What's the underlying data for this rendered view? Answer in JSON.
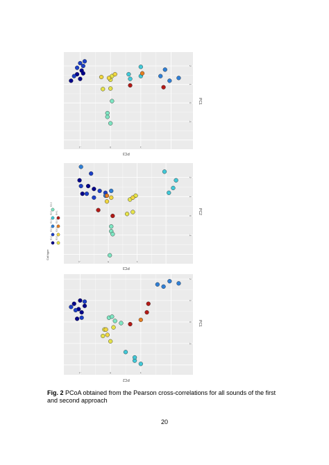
{
  "colors": {
    "panel_bg": "#ebebeb",
    "grid": "#ffffff",
    "call_types": [
      "#00008b",
      "#1c3fc7",
      "#2f7fd6",
      "#42c9d8",
      "#7ee5c2",
      "#e6e34a",
      "#f0d640",
      "#e67e22",
      "#b31a17"
    ]
  },
  "caption": {
    "label": "Fig. 2",
    "text": " PCoA obtained from the Pearson cross-correlations for all sounds of the first and second approach"
  },
  "page_number": "20",
  "legend": {
    "title": "Call type",
    "entries": [
      "G1.1",
      "G1.2",
      "G1.3",
      "G2.1",
      "G2.2",
      "G3.1",
      "G3.2",
      "G3.3",
      "G4.1"
    ]
  },
  "chart_data": [
    {
      "type": "scatter",
      "panel": "top",
      "xlabel": "PC3",
      "ylabel": "PC1",
      "x_ticks": [
        "-2",
        "-1",
        "0",
        "1"
      ],
      "y_ticks": [
        "2",
        "1",
        "0",
        "-1"
      ],
      "points": [
        {
          "pc1": -1.3,
          "pc3": 1.2,
          "c": 0
        },
        {
          "pc1": -1.0,
          "pc3": 1.3,
          "c": 0
        },
        {
          "pc1": -1.1,
          "pc3": 1.55,
          "c": 0
        },
        {
          "pc1": -0.95,
          "pc3": 1.75,
          "c": 0
        },
        {
          "pc1": -1.1,
          "pc3": 1.9,
          "c": 1
        },
        {
          "pc1": -0.9,
          "pc3": 2.0,
          "c": 1
        },
        {
          "pc1": -1.0,
          "pc3": 2.15,
          "c": 1
        },
        {
          "pc1": -0.85,
          "pc3": 2.25,
          "c": 1
        },
        {
          "pc1": -1.2,
          "pc3": 1.45,
          "c": 1
        },
        {
          "pc1": -0.9,
          "pc3": 1.6,
          "c": 0
        },
        {
          "pc1": 2.25,
          "pc3": 1.35,
          "c": 2
        },
        {
          "pc1": 1.95,
          "pc3": 1.2,
          "c": 2
        },
        {
          "pc1": 1.65,
          "pc3": 1.45,
          "c": 2
        },
        {
          "pc1": 1.8,
          "pc3": 1.8,
          "c": 2
        },
        {
          "pc1": 1.0,
          "pc3": 1.45,
          "c": 3
        },
        {
          "pc1": 0.65,
          "pc3": 1.3,
          "c": 3
        },
        {
          "pc1": 0.6,
          "pc3": 1.55,
          "c": 3
        },
        {
          "pc1": 1.0,
          "pc3": 1.95,
          "c": 3
        },
        {
          "pc1": 0.0,
          "pc3": -1.1,
          "c": 4
        },
        {
          "pc1": -0.1,
          "pc3": -0.75,
          "c": 4
        },
        {
          "pc1": -0.1,
          "pc3": -0.55,
          "c": 4
        },
        {
          "pc1": 0.05,
          "pc3": 0.1,
          "c": 4
        },
        {
          "pc1": 0.0,
          "pc3": 0.78,
          "c": 5
        },
        {
          "pc1": -0.25,
          "pc3": 0.75,
          "c": 5
        },
        {
          "pc1": 0.0,
          "pc3": 1.25,
          "c": 5
        },
        {
          "pc1": 0.05,
          "pc3": 1.45,
          "c": 5
        },
        {
          "pc1": -0.05,
          "pc3": 1.35,
          "c": 6
        },
        {
          "pc1": 0.15,
          "pc3": 1.55,
          "c": 6
        },
        {
          "pc1": -0.3,
          "pc3": 1.4,
          "c": 6
        },
        {
          "pc1": 1.05,
          "pc3": 1.6,
          "c": 7
        },
        {
          "pc1": 0.65,
          "pc3": 0.95,
          "c": 8
        },
        {
          "pc1": 1.75,
          "pc3": 0.85,
          "c": 8
        }
      ]
    },
    {
      "type": "scatter",
      "panel": "middle",
      "xlabel": "PC3",
      "ylabel": "PC2",
      "x_ticks": [
        "-2",
        "-1",
        "0",
        "1"
      ],
      "y_ticks": [
        "2",
        "1",
        "0",
        "-1"
      ],
      "points": [
        {
          "pc2": -1.0,
          "pc3": 1.85,
          "c": 0
        },
        {
          "pc2": -0.7,
          "pc3": 1.55,
          "c": 0
        },
        {
          "pc2": -0.5,
          "pc3": 1.4,
          "c": 0
        },
        {
          "pc2": -0.9,
          "pc3": 1.15,
          "c": 0
        },
        {
          "pc2": -0.5,
          "pc3": 0.95,
          "c": 1
        },
        {
          "pc2": -0.75,
          "pc3": 1.15,
          "c": 1
        },
        {
          "pc2": -0.3,
          "pc3": 1.3,
          "c": 1
        },
        {
          "pc2": -0.1,
          "pc3": 1.2,
          "c": 1
        },
        {
          "pc2": -0.95,
          "pc3": 1.55,
          "c": 1
        },
        {
          "pc2": -0.6,
          "pc3": 2.2,
          "c": 1
        },
        {
          "pc2": -0.1,
          "pc3": 1.05,
          "c": 2
        },
        {
          "pc2": 0.1,
          "pc3": 1.3,
          "c": 2
        },
        {
          "pc2": -0.95,
          "pc3": 2.55,
          "c": 2
        },
        {
          "pc2": 2.1,
          "pc3": 1.2,
          "c": 3
        },
        {
          "pc2": 2.25,
          "pc3": 1.45,
          "c": 3
        },
        {
          "pc2": 2.35,
          "pc3": 1.85,
          "c": 3
        },
        {
          "pc2": 1.95,
          "pc3": 2.3,
          "c": 3
        },
        {
          "pc2": 0.05,
          "pc3": -2.05,
          "c": 4
        },
        {
          "pc2": 0.1,
          "pc3": -0.8,
          "c": 4
        },
        {
          "pc2": 0.1,
          "pc3": -0.55,
          "c": 4
        },
        {
          "pc2": 0.15,
          "pc3": -0.95,
          "c": 4
        },
        {
          "pc2": 0.85,
          "pc3": 0.2,
          "c": 5
        },
        {
          "pc2": 0.65,
          "pc3": 0.1,
          "c": 5
        },
        {
          "pc2": 0.75,
          "pc3": 0.85,
          "c": 5
        },
        {
          "pc2": 0.95,
          "pc3": 1.05,
          "c": 5
        },
        {
          "pc2": 0.85,
          "pc3": 0.95,
          "c": 6
        },
        {
          "pc2": 0.1,
          "pc3": 0.95,
          "c": 6
        },
        {
          "pc2": -0.05,
          "pc3": 0.75,
          "c": 6
        },
        {
          "pc2": -0.05,
          "pc3": 1.05,
          "c": 7
        },
        {
          "pc2": 0.15,
          "pc3": 0.0,
          "c": 8
        },
        {
          "pc2": -0.35,
          "pc3": 0.3,
          "c": 8
        }
      ]
    },
    {
      "type": "scatter",
      "panel": "bottom",
      "xlabel": "PC2",
      "ylabel": "PC1",
      "x_ticks": [
        "-2",
        "-1",
        "0",
        "1"
      ],
      "y_ticks": [
        "2",
        "1",
        "0",
        "-1"
      ],
      "points": [
        {
          "pc1": -1.1,
          "pc2": 0.15,
          "c": 0
        },
        {
          "pc1": -0.95,
          "pc2": 0.45,
          "c": 0
        },
        {
          "pc1": -1.05,
          "pc2": 0.6,
          "c": 0
        },
        {
          "pc1": -0.85,
          "pc2": 0.75,
          "c": 0
        },
        {
          "pc1": -1.2,
          "pc2": 0.85,
          "c": 0
        },
        {
          "pc1": -1.0,
          "pc2": 1.0,
          "c": 0
        },
        {
          "pc1": -1.3,
          "pc2": 0.7,
          "c": 1
        },
        {
          "pc1": -0.95,
          "pc2": 0.2,
          "c": 1
        },
        {
          "pc1": -1.15,
          "pc2": 0.55,
          "c": 1
        },
        {
          "pc1": -0.85,
          "pc2": 0.95,
          "c": 1
        },
        {
          "pc1": 2.25,
          "pc2": 1.8,
          "c": 2
        },
        {
          "pc1": 1.75,
          "pc2": 1.65,
          "c": 2
        },
        {
          "pc1": 1.55,
          "pc2": 1.75,
          "c": 2
        },
        {
          "pc1": 1.95,
          "pc2": 1.9,
          "c": 2
        },
        {
          "pc1": 1.0,
          "pc2": -1.95,
          "c": 3
        },
        {
          "pc1": 0.8,
          "pc2": -1.8,
          "c": 3
        },
        {
          "pc1": 0.8,
          "pc2": -1.65,
          "c": 3
        },
        {
          "pc1": 0.5,
          "pc2": -1.4,
          "c": 3
        },
        {
          "pc1": 0.35,
          "pc2": -0.05,
          "c": 4
        },
        {
          "pc1": 0.15,
          "pc2": 0.05,
          "c": 4
        },
        {
          "pc1": -0.05,
          "pc2": 0.2,
          "c": 4
        },
        {
          "pc1": 0.05,
          "pc2": 0.25,
          "c": 4
        },
        {
          "pc1": -0.25,
          "pc2": -0.65,
          "c": 5
        },
        {
          "pc1": -0.2,
          "pc2": -0.35,
          "c": 5
        },
        {
          "pc1": 0.0,
          "pc2": -0.9,
          "c": 5
        },
        {
          "pc1": 0.1,
          "pc2": -0.25,
          "c": 5
        },
        {
          "pc1": -0.1,
          "pc2": -0.6,
          "c": 6
        },
        {
          "pc1": -0.15,
          "pc2": -0.35,
          "c": 6
        },
        {
          "pc1": 1.0,
          "pc2": 0.1,
          "c": 7
        },
        {
          "pc1": 0.65,
          "pc2": -0.1,
          "c": 8
        },
        {
          "pc1": 1.2,
          "pc2": 0.45,
          "c": 8
        },
        {
          "pc1": 1.25,
          "pc2": 0.85,
          "c": 8
        }
      ]
    }
  ]
}
